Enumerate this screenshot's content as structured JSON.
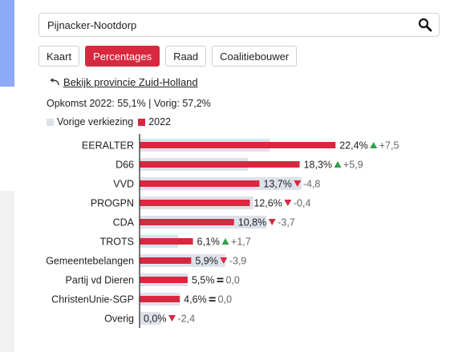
{
  "search": {
    "value": "Pijnacker-Nootdorp"
  },
  "tabs": [
    {
      "label": "Kaart",
      "active": false
    },
    {
      "label": "Percentages",
      "active": true
    },
    {
      "label": "Raad",
      "active": false
    },
    {
      "label": "Coalitiebouwer",
      "active": false
    }
  ],
  "province_link": "Bekijk provincie Zuid-Holland",
  "turnout": {
    "current": "Opkomst 2022: 55,1%",
    "sep": " | ",
    "previous": "Vorig: 57,2%"
  },
  "legend": {
    "previous": {
      "label": "Vorige verkiezing",
      "color": "#dde1ea"
    },
    "current": {
      "label": "2022",
      "color": "#d8283f"
    }
  },
  "colors": {
    "up": "#2e9e4a",
    "down": "#d8283f",
    "neutral": "#222222",
    "change_text": "#666666"
  },
  "chart_data": {
    "type": "bar",
    "categories": [
      "EERALTER",
      "D66",
      "VVD",
      "PROGPN",
      "CDA",
      "TROTS",
      "Gemeentebelangen",
      "Partij vd Dieren",
      "ChristenUnie-SGP",
      "Overig"
    ],
    "series": [
      {
        "name": "Vorige verkiezing",
        "values": [
          14.9,
          12.4,
          18.5,
          13.0,
          14.5,
          4.4,
          9.8,
          5.5,
          4.6,
          2.4
        ]
      },
      {
        "name": "2022",
        "values": [
          22.4,
          18.3,
          13.7,
          12.6,
          10.8,
          6.1,
          5.9,
          5.5,
          4.6,
          0.0
        ]
      }
    ],
    "value_labels": [
      "22,4%",
      "18,3%",
      "13,7%",
      "12,6%",
      "10,8%",
      "6,1%",
      "5,9%",
      "5,5%",
      "4,6%",
      "0,0%"
    ],
    "change_labels": [
      "+7,5",
      "+5,9",
      "-4,8",
      "-0,4",
      "-3,7",
      "+1,7",
      "-3,9",
      "0,0",
      "0,0",
      "-2,4"
    ],
    "change_dir": [
      "up",
      "up",
      "down",
      "down",
      "down",
      "up",
      "down",
      "same",
      "same",
      "down"
    ],
    "xlim": [
      0,
      24.3
    ]
  }
}
